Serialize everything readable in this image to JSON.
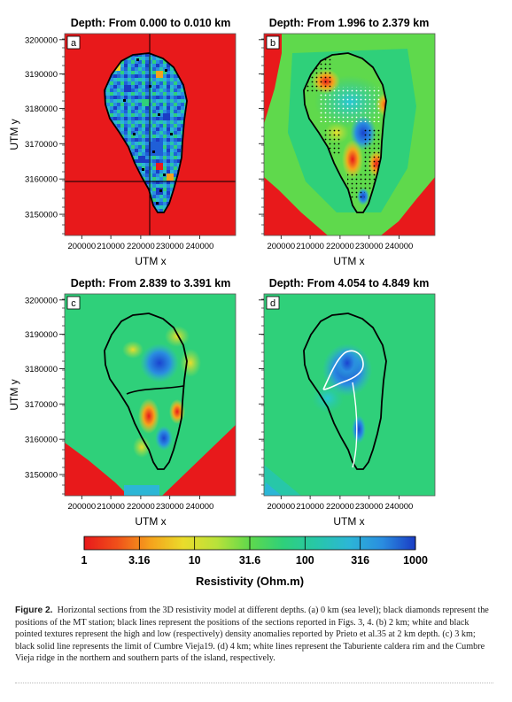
{
  "panels": [
    {
      "letter": "a",
      "title": "Depth: From 0.000 to 0.010 km"
    },
    {
      "letter": "b",
      "title": "Depth: From 1.996 to 2.379 km"
    },
    {
      "letter": "c",
      "title": "Depth: From 2.839 to 3.391 km"
    },
    {
      "letter": "d",
      "title": "Depth: From 4.054 to 4.849 km"
    }
  ],
  "axes": {
    "xlabel": "UTM x",
    "ylabel": "UTM y",
    "xticks": [
      "200000",
      "210000",
      "220000",
      "230000",
      "240000"
    ],
    "yticks": [
      "3200000",
      "3190000",
      "3180000",
      "3170000",
      "3160000",
      "3150000"
    ]
  },
  "colorbar": {
    "ticks": [
      "1",
      "3.16",
      "10",
      "31.6",
      "100",
      "316",
      "1000"
    ],
    "label": "Resistivity (Ohm.m)",
    "colors": [
      "#e8191b",
      "#f0501a",
      "#f5a21c",
      "#eadc2b",
      "#b9e23a",
      "#5fd94c",
      "#2fd07a",
      "#27c7a8",
      "#2cb6d6",
      "#2a8de0",
      "#1f5fd8",
      "#1a3cc4"
    ]
  },
  "caption": {
    "label": "Figure 2.",
    "text": "Horizontal sections from the 3D resistivity model at different depths. (a) 0 km (sea level); black diamonds represent the positions of the MT station; black lines represent the positions of the sections reported in Figs. 3, 4. (b) 2 km; white and black pointed textures represent the high and low (respectively) density anomalies reported by Prieto et al.35 at 2 km depth. (c) 3 km; black solid line represents the limit of Cumbre Vieja19. (d) 4 km; white lines represent the Taburiente caldera rim and the Cumbre Vieja ridge in the northern and southern parts of the island, respectively."
  }
}
